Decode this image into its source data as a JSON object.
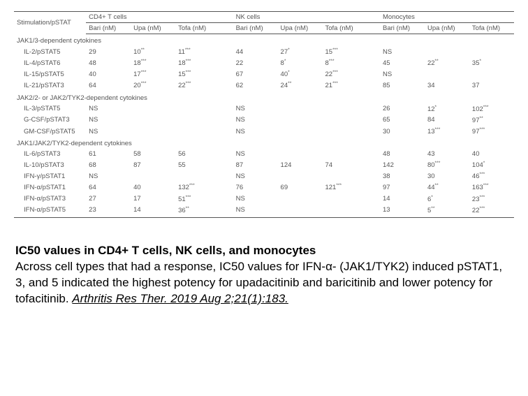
{
  "table": {
    "header": {
      "stimulation": "Stimulation/pSTAT",
      "groups": [
        "CD4+ T cells",
        "NK cells",
        "Monocytes"
      ],
      "subcols": [
        "Bari (nM)",
        "Upa (nM)",
        "Tofa (nM)"
      ]
    },
    "sections": [
      {
        "label": "JAK1/3-dependent cytokines",
        "rows": [
          {
            "name": "IL-2/pSTAT5",
            "c": [
              "29",
              "10**",
              "11***",
              "44",
              "27*",
              "15***",
              "NS",
              "",
              ""
            ]
          },
          {
            "name": "IL-4/pSTAT6",
            "c": [
              "48",
              "18***",
              "18***",
              "22",
              "8*",
              "8***",
              "45",
              "22**",
              "35*"
            ]
          },
          {
            "name": "IL-15/pSTAT5",
            "c": [
              "40",
              "17***",
              "15***",
              "67",
              "40*",
              "22***",
              "NS",
              "",
              ""
            ]
          },
          {
            "name": "IL-21/pSTAT3",
            "c": [
              "64",
              "20***",
              "22***",
              "62",
              "24**",
              "21***",
              "85",
              "34",
              "37"
            ]
          }
        ]
      },
      {
        "label": "JAK2/2- or JAK2/TYK2-dependent cytokines",
        "rows": [
          {
            "name": "IL-3/pSTAT5",
            "c": [
              "NS",
              "",
              "",
              "NS",
              "",
              "",
              "26",
              "12*",
              "102***"
            ]
          },
          {
            "name": "G-CSF/pSTAT3",
            "c": [
              "NS",
              "",
              "",
              "NS",
              "",
              "",
              "65",
              "84",
              "97**"
            ]
          },
          {
            "name": "GM-CSF/pSTAT5",
            "c": [
              "NS",
              "",
              "",
              "NS",
              "",
              "",
              "30",
              "13***",
              "97***"
            ]
          }
        ]
      },
      {
        "label": "JAK1/JAK2/TYK2-dependent cytokines",
        "rows": [
          {
            "name": "IL-6/pSTAT3",
            "c": [
              "61",
              "58",
              "56",
              "NS",
              "",
              "",
              "48",
              "43",
              "40"
            ]
          },
          {
            "name": "IL-10/pSTAT3",
            "c": [
              "68",
              "87",
              "55",
              "87",
              "124",
              "74",
              "142",
              "80***",
              "104*"
            ]
          },
          {
            "name": "IFN-γ/pSTAT1",
            "c": [
              "NS",
              "",
              "",
              "NS",
              "",
              "",
              "38",
              "30",
              "46***"
            ]
          },
          {
            "name": "IFN-α/pSTAT1",
            "c": [
              "64",
              "40",
              "132***",
              "76",
              "69",
              "121***",
              "97",
              "44**",
              "163***"
            ]
          },
          {
            "name": "IFN-α/pSTAT3",
            "c": [
              "27",
              "17",
              "51***",
              "NS",
              "",
              "",
              "14",
              "6*",
              "23***"
            ]
          },
          {
            "name": "IFN-α/pSTAT5",
            "c": [
              "23",
              "14",
              "36**",
              "NS",
              "",
              "",
              "13",
              "5**",
              "22***"
            ]
          }
        ]
      }
    ]
  },
  "caption": {
    "title": "IC50 values in CD4+ T cells, NK cells, and monocytes",
    "body": "Across cell types that had a response, IC50 values for IFN-α- (JAK1/TYK2) induced pSTAT1, 3, and 5 indicated the highest potency for upadacitinib and baricitinib and lower potency for tofacitinib. ",
    "cite": "Arthritis Res Ther. 2019 Aug 2;21(1):183."
  },
  "colors": {
    "text": "#000000",
    "tableText": "#555555",
    "border": "#555555",
    "bg": "#ffffff"
  }
}
